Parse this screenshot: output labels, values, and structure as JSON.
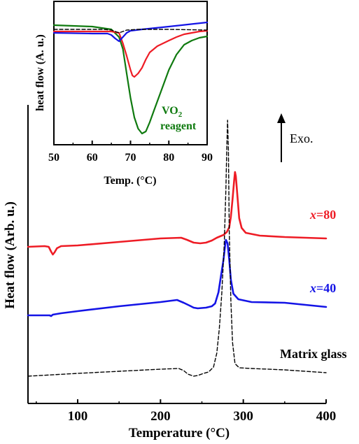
{
  "chart_data": [
    {
      "type": "line",
      "xlabel": "Temperature (°C)",
      "ylabel": "Heat flow (Arb. u.)",
      "xlim": [
        40,
        400
      ],
      "xticks": [
        100,
        200,
        300,
        400
      ],
      "y_units": "arbitrary",
      "grid": false,
      "annotation_exo": "Exo.",
      "series": [
        {
          "name": "x=80",
          "label_parts": [
            "x",
            "=80"
          ],
          "color": "#ee1c25",
          "style": "solid",
          "points": [
            [
              40,
              353
            ],
            [
              60,
              352
            ],
            [
              65,
              353
            ],
            [
              68,
              360
            ],
            [
              70,
              364
            ],
            [
              72,
              361
            ],
            [
              75,
              355
            ],
            [
              80,
              352
            ],
            [
              100,
              351
            ],
            [
              150,
              346
            ],
            [
              200,
              341
            ],
            [
              225,
              340
            ],
            [
              232,
              343
            ],
            [
              240,
              347
            ],
            [
              248,
              348
            ],
            [
              255,
              347
            ],
            [
              262,
              344
            ],
            [
              268,
              340
            ],
            [
              272,
              338
            ],
            [
              276,
              336
            ],
            [
              280,
              332
            ],
            [
              283,
              325
            ],
            [
              285,
              310
            ],
            [
              287,
              285
            ],
            [
              289,
              258
            ],
            [
              290,
              246
            ],
            [
              291,
              252
            ],
            [
              293,
              282
            ],
            [
              295,
              312
            ],
            [
              298,
              326
            ],
            [
              303,
              333
            ],
            [
              320,
              337
            ],
            [
              350,
              339
            ],
            [
              400,
              341
            ]
          ]
        },
        {
          "name": "x=40",
          "label_parts": [
            "x",
            "=40"
          ],
          "color": "#1414e6",
          "style": "solid",
          "points": [
            [
              40,
              451
            ],
            [
              60,
              451
            ],
            [
              66,
              451
            ],
            [
              68,
              452
            ],
            [
              70,
              450
            ],
            [
              80,
              448
            ],
            [
              100,
              445
            ],
            [
              150,
              438
            ],
            [
              200,
              432
            ],
            [
              220,
              429
            ],
            [
              228,
              433
            ],
            [
              235,
              437
            ],
            [
              240,
              440
            ],
            [
              245,
              441
            ],
            [
              255,
              440
            ],
            [
              262,
              438
            ],
            [
              266,
              434
            ],
            [
              270,
              418
            ],
            [
              273,
              395
            ],
            [
              276,
              372
            ],
            [
              278,
              352
            ],
            [
              279,
              343
            ],
            [
              281,
              348
            ],
            [
              283,
              372
            ],
            [
              285,
              400
            ],
            [
              288,
              420
            ],
            [
              294,
              428
            ],
            [
              310,
              432
            ],
            [
              350,
              433
            ],
            [
              400,
              439
            ]
          ]
        },
        {
          "name": "Matrix glass",
          "color": "#000000",
          "style": "dashed",
          "points": [
            [
              40,
              538
            ],
            [
              100,
              534
            ],
            [
              150,
              531
            ],
            [
              200,
              528
            ],
            [
              222,
              527
            ],
            [
              228,
              530
            ],
            [
              233,
              535
            ],
            [
              240,
              538
            ],
            [
              245,
              537
            ],
            [
              252,
              534
            ],
            [
              258,
              532
            ],
            [
              264,
              525
            ],
            [
              268,
              505
            ],
            [
              271,
              470
            ],
            [
              274,
              420
            ],
            [
              277,
              350
            ],
            [
              279,
              270
            ],
            [
              280,
              215
            ],
            [
              281,
              172
            ],
            [
              282,
              215
            ],
            [
              283,
              330
            ],
            [
              285,
              430
            ],
            [
              287,
              490
            ],
            [
              290,
              520
            ],
            [
              295,
              526
            ],
            [
              310,
              527
            ],
            [
              350,
              529
            ],
            [
              400,
              533
            ]
          ]
        }
      ]
    },
    {
      "type": "line",
      "xlabel": "Temp. (°C)",
      "ylabel": "heat flow (A. u.)",
      "xlim": [
        50,
        90
      ],
      "xticks": [
        50,
        60,
        70,
        80,
        90
      ],
      "y_units": "arbitrary",
      "series_label": "VO2 reagent",
      "label_parts": [
        "VO",
        "2",
        "reagent"
      ],
      "series": [
        {
          "name": "VO2 reagent",
          "color": "#0f7a0f",
          "style": "solid",
          "points": [
            [
              50,
              36
            ],
            [
              60,
              38
            ],
            [
              65,
              42
            ],
            [
              67,
              53
            ],
            [
              68,
              70
            ],
            [
              69,
              105
            ],
            [
              70,
              140
            ],
            [
              71,
              168
            ],
            [
              72,
              184
            ],
            [
              73,
              191
            ],
            [
              74,
              188
            ],
            [
              75,
              175
            ],
            [
              76,
              160
            ],
            [
              78,
              130
            ],
            [
              80,
              100
            ],
            [
              82,
              78
            ],
            [
              84,
              64
            ],
            [
              86,
              58
            ],
            [
              88,
              54
            ],
            [
              90,
              52
            ]
          ]
        },
        {
          "name": "red",
          "color": "#ee1c25",
          "style": "solid",
          "points": [
            [
              50,
              45
            ],
            [
              60,
              45
            ],
            [
              65,
              45
            ],
            [
              67,
              47
            ],
            [
              68,
              62
            ],
            [
              69,
              80
            ],
            [
              70,
              100
            ],
            [
              70.5,
              108
            ],
            [
              71,
              110
            ],
            [
              72,
              105
            ],
            [
              73,
              97
            ],
            [
              74,
              85
            ],
            [
              75,
              75
            ],
            [
              77,
              66
            ],
            [
              80,
              58
            ],
            [
              82,
              53
            ],
            [
              84,
              49
            ],
            [
              86,
              47
            ],
            [
              88,
              45
            ],
            [
              90,
              44
            ]
          ]
        },
        {
          "name": "blue",
          "color": "#1414e6",
          "style": "solid",
          "points": [
            [
              50,
              47
            ],
            [
              60,
              48
            ],
            [
              64,
              48
            ],
            [
              65,
              50
            ],
            [
              66,
              55
            ],
            [
              67,
              59
            ],
            [
              68,
              53
            ],
            [
              69,
              47
            ],
            [
              70,
              44
            ],
            [
              73,
              42
            ],
            [
              80,
              38
            ],
            [
              85,
              35
            ],
            [
              90,
              32
            ]
          ]
        },
        {
          "name": "dashed",
          "color": "#000000",
          "style": "dashed",
          "points": [
            [
              50,
              42
            ],
            [
              63,
              42
            ],
            [
              65,
              43
            ],
            [
              66,
              45
            ],
            [
              67,
              47
            ],
            [
              68,
              45
            ],
            [
              69,
              43
            ],
            [
              72,
              42
            ],
            [
              80,
              42
            ],
            [
              90,
              43
            ]
          ]
        }
      ]
    }
  ]
}
